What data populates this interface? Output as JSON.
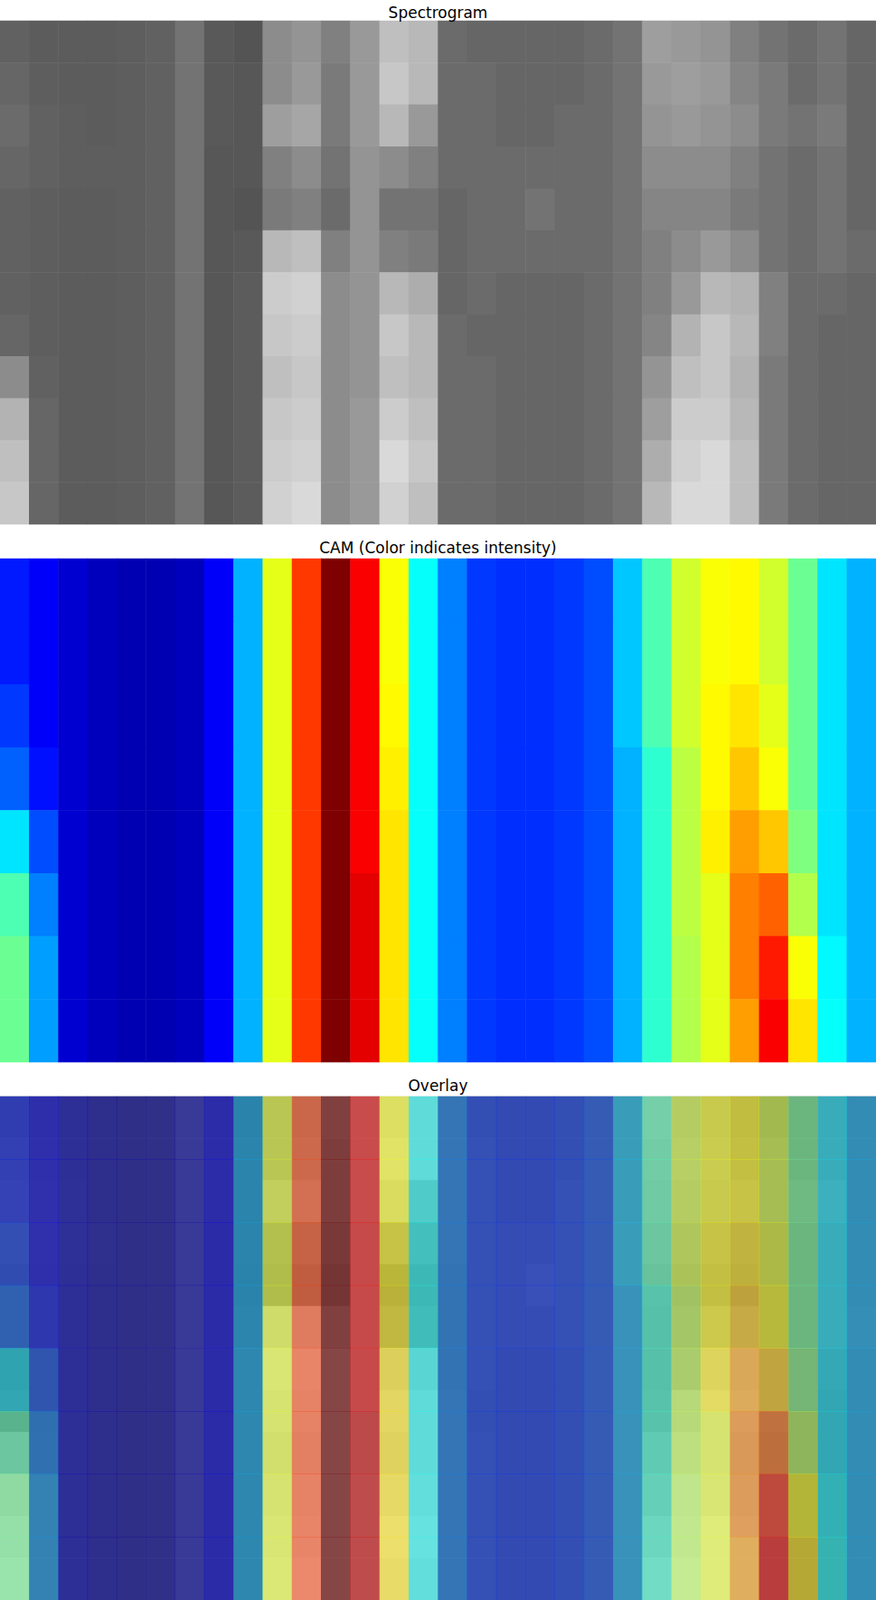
{
  "chart_data": [
    {
      "type": "heatmap",
      "title": "Spectrogram",
      "color": "gray",
      "tick_labels": false,
      "zlim": [
        0,
        1
      ],
      "cells": [
        [
          0.38,
          0.36,
          0.36,
          0.36,
          0.37,
          0.38,
          0.45,
          0.35,
          0.33,
          0.55,
          0.58,
          0.5,
          0.6,
          0.75,
          0.72,
          0.42,
          0.4,
          0.4,
          0.4,
          0.4,
          0.42,
          0.45,
          0.62,
          0.6,
          0.58,
          0.5,
          0.45,
          0.42,
          0.45,
          0.4
        ],
        [
          0.4,
          0.37,
          0.36,
          0.36,
          0.37,
          0.38,
          0.45,
          0.35,
          0.34,
          0.55,
          0.6,
          0.48,
          0.6,
          0.78,
          0.72,
          0.42,
          0.42,
          0.4,
          0.4,
          0.4,
          0.42,
          0.45,
          0.6,
          0.62,
          0.6,
          0.52,
          0.48,
          0.42,
          0.45,
          0.4
        ],
        [
          0.42,
          0.38,
          0.37,
          0.36,
          0.37,
          0.38,
          0.45,
          0.35,
          0.34,
          0.62,
          0.65,
          0.48,
          0.6,
          0.72,
          0.6,
          0.42,
          0.42,
          0.4,
          0.4,
          0.42,
          0.42,
          0.45,
          0.58,
          0.6,
          0.58,
          0.55,
          0.48,
          0.45,
          0.48,
          0.4
        ],
        [
          0.4,
          0.38,
          0.37,
          0.37,
          0.37,
          0.38,
          0.45,
          0.34,
          0.34,
          0.5,
          0.55,
          0.45,
          0.58,
          0.55,
          0.5,
          0.42,
          0.42,
          0.42,
          0.42,
          0.42,
          0.42,
          0.45,
          0.55,
          0.55,
          0.55,
          0.5,
          0.45,
          0.42,
          0.45,
          0.4
        ],
        [
          0.38,
          0.37,
          0.36,
          0.36,
          0.37,
          0.38,
          0.45,
          0.34,
          0.33,
          0.48,
          0.5,
          0.42,
          0.58,
          0.45,
          0.45,
          0.4,
          0.42,
          0.42,
          0.45,
          0.42,
          0.42,
          0.45,
          0.52,
          0.52,
          0.52,
          0.48,
          0.45,
          0.42,
          0.45,
          0.4
        ],
        [
          0.38,
          0.37,
          0.36,
          0.36,
          0.37,
          0.38,
          0.45,
          0.34,
          0.35,
          0.72,
          0.75,
          0.5,
          0.58,
          0.5,
          0.48,
          0.4,
          0.42,
          0.42,
          0.42,
          0.42,
          0.42,
          0.45,
          0.5,
          0.55,
          0.6,
          0.55,
          0.45,
          0.42,
          0.45,
          0.42
        ],
        [
          0.38,
          0.37,
          0.36,
          0.36,
          0.37,
          0.38,
          0.45,
          0.34,
          0.36,
          0.8,
          0.82,
          0.55,
          0.58,
          0.72,
          0.68,
          0.4,
          0.42,
          0.4,
          0.4,
          0.4,
          0.42,
          0.45,
          0.5,
          0.6,
          0.72,
          0.7,
          0.5,
          0.42,
          0.42,
          0.4
        ],
        [
          0.4,
          0.37,
          0.36,
          0.36,
          0.37,
          0.38,
          0.45,
          0.34,
          0.36,
          0.78,
          0.8,
          0.55,
          0.58,
          0.78,
          0.72,
          0.42,
          0.4,
          0.4,
          0.4,
          0.4,
          0.42,
          0.45,
          0.52,
          0.7,
          0.78,
          0.72,
          0.5,
          0.42,
          0.4,
          0.4
        ],
        [
          0.55,
          0.38,
          0.36,
          0.36,
          0.37,
          0.38,
          0.45,
          0.34,
          0.36,
          0.75,
          0.78,
          0.55,
          0.58,
          0.75,
          0.72,
          0.42,
          0.42,
          0.4,
          0.4,
          0.4,
          0.42,
          0.45,
          0.58,
          0.75,
          0.78,
          0.7,
          0.48,
          0.42,
          0.4,
          0.4
        ],
        [
          0.7,
          0.4,
          0.36,
          0.36,
          0.37,
          0.38,
          0.45,
          0.34,
          0.36,
          0.78,
          0.8,
          0.55,
          0.6,
          0.8,
          0.75,
          0.42,
          0.42,
          0.4,
          0.4,
          0.4,
          0.42,
          0.45,
          0.62,
          0.8,
          0.8,
          0.72,
          0.48,
          0.42,
          0.4,
          0.4
        ],
        [
          0.75,
          0.4,
          0.36,
          0.36,
          0.37,
          0.38,
          0.45,
          0.34,
          0.36,
          0.8,
          0.82,
          0.55,
          0.6,
          0.85,
          0.78,
          0.42,
          0.42,
          0.4,
          0.4,
          0.4,
          0.42,
          0.45,
          0.68,
          0.82,
          0.85,
          0.75,
          0.48,
          0.42,
          0.4,
          0.4
        ],
        [
          0.78,
          0.4,
          0.36,
          0.36,
          0.37,
          0.38,
          0.45,
          0.34,
          0.36,
          0.82,
          0.85,
          0.55,
          0.6,
          0.82,
          0.75,
          0.42,
          0.42,
          0.4,
          0.4,
          0.4,
          0.42,
          0.45,
          0.72,
          0.85,
          0.85,
          0.75,
          0.48,
          0.42,
          0.4,
          0.4
        ]
      ]
    },
    {
      "type": "heatmap",
      "title": "CAM (Color indicates intensity)",
      "color": "jet",
      "tick_labels": false,
      "zlim": [
        0,
        1
      ],
      "cells": [
        [
          0.15,
          0.12,
          0.08,
          0.06,
          0.05,
          0.05,
          0.06,
          0.12,
          0.3,
          0.6,
          0.82,
          1.0,
          0.88,
          0.62,
          0.38,
          0.25,
          0.18,
          0.17,
          0.17,
          0.18,
          0.2,
          0.32,
          0.45,
          0.58,
          0.62,
          0.63,
          0.58,
          0.48,
          0.35,
          0.3
        ],
        [
          0.15,
          0.12,
          0.08,
          0.06,
          0.05,
          0.05,
          0.06,
          0.12,
          0.3,
          0.6,
          0.82,
          1.0,
          0.88,
          0.62,
          0.38,
          0.25,
          0.18,
          0.17,
          0.17,
          0.18,
          0.2,
          0.32,
          0.45,
          0.58,
          0.62,
          0.63,
          0.58,
          0.48,
          0.35,
          0.3
        ],
        [
          0.18,
          0.12,
          0.08,
          0.06,
          0.05,
          0.05,
          0.06,
          0.12,
          0.3,
          0.6,
          0.82,
          1.0,
          0.88,
          0.63,
          0.38,
          0.25,
          0.18,
          0.17,
          0.17,
          0.18,
          0.2,
          0.32,
          0.45,
          0.58,
          0.63,
          0.65,
          0.6,
          0.48,
          0.35,
          0.3
        ],
        [
          0.22,
          0.14,
          0.08,
          0.06,
          0.05,
          0.05,
          0.06,
          0.12,
          0.3,
          0.6,
          0.82,
          1.0,
          0.88,
          0.64,
          0.38,
          0.25,
          0.18,
          0.17,
          0.17,
          0.18,
          0.2,
          0.3,
          0.42,
          0.56,
          0.63,
          0.68,
          0.62,
          0.48,
          0.35,
          0.3
        ],
        [
          0.35,
          0.2,
          0.08,
          0.06,
          0.05,
          0.05,
          0.06,
          0.12,
          0.3,
          0.6,
          0.82,
          1.0,
          0.88,
          0.65,
          0.38,
          0.25,
          0.18,
          0.17,
          0.17,
          0.18,
          0.2,
          0.3,
          0.42,
          0.56,
          0.64,
          0.72,
          0.68,
          0.5,
          0.35,
          0.3
        ],
        [
          0.45,
          0.25,
          0.08,
          0.06,
          0.05,
          0.05,
          0.06,
          0.12,
          0.3,
          0.6,
          0.82,
          1.0,
          0.9,
          0.65,
          0.38,
          0.25,
          0.18,
          0.17,
          0.17,
          0.18,
          0.2,
          0.3,
          0.42,
          0.56,
          0.6,
          0.75,
          0.78,
          0.55,
          0.35,
          0.3
        ],
        [
          0.48,
          0.28,
          0.08,
          0.06,
          0.05,
          0.05,
          0.06,
          0.12,
          0.3,
          0.6,
          0.82,
          1.0,
          0.9,
          0.65,
          0.38,
          0.25,
          0.18,
          0.17,
          0.17,
          0.18,
          0.2,
          0.3,
          0.42,
          0.55,
          0.6,
          0.75,
          0.85,
          0.62,
          0.37,
          0.3
        ],
        [
          0.48,
          0.28,
          0.08,
          0.06,
          0.05,
          0.05,
          0.06,
          0.12,
          0.3,
          0.6,
          0.82,
          1.0,
          0.9,
          0.65,
          0.38,
          0.25,
          0.18,
          0.17,
          0.17,
          0.18,
          0.2,
          0.3,
          0.42,
          0.55,
          0.6,
          0.72,
          0.88,
          0.65,
          0.38,
          0.3
        ]
      ]
    },
    {
      "type": "overlay",
      "title": "Overlay",
      "tick_labels": false
    }
  ]
}
